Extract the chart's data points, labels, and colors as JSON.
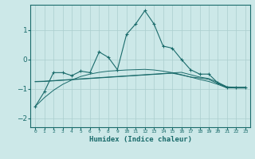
{
  "xlabel": "Humidex (Indice chaleur)",
  "ylabel": "",
  "background_color": "#cce8e8",
  "grid_color": "#aacece",
  "line_color": "#1a6b6b",
  "xlim": [
    -0.5,
    23.5
  ],
  "ylim": [
    -2.3,
    1.85
  ],
  "yticks": [
    -2,
    -1,
    0,
    1
  ],
  "xticks": [
    0,
    1,
    2,
    3,
    4,
    5,
    6,
    7,
    8,
    9,
    10,
    11,
    12,
    13,
    14,
    15,
    16,
    17,
    18,
    19,
    20,
    21,
    22,
    23
  ],
  "series": [
    {
      "x": [
        0,
        1,
        2,
        3,
        4,
        5,
        6,
        7,
        8,
        9,
        10,
        11,
        12,
        13,
        14,
        15,
        16,
        17,
        18,
        19,
        20,
        21,
        22,
        23
      ],
      "y": [
        -1.6,
        -1.1,
        -0.45,
        -0.45,
        -0.55,
        -0.4,
        -0.45,
        0.25,
        0.07,
        -0.35,
        0.85,
        1.2,
        1.65,
        1.2,
        0.45,
        0.38,
        0.0,
        -0.35,
        -0.5,
        -0.5,
        -0.8,
        -0.95,
        -0.95,
        -0.95
      ],
      "marker": "+"
    },
    {
      "x": [
        0,
        1,
        2,
        3,
        4,
        5,
        6,
        7,
        8,
        9,
        10,
        11,
        12,
        13,
        14,
        15,
        16,
        17,
        18,
        19,
        20,
        21,
        22,
        23
      ],
      "y": [
        -0.75,
        -0.74,
        -0.72,
        -0.7,
        -0.68,
        -0.66,
        -0.64,
        -0.62,
        -0.6,
        -0.58,
        -0.56,
        -0.54,
        -0.52,
        -0.5,
        -0.48,
        -0.46,
        -0.44,
        -0.52,
        -0.6,
        -0.65,
        -0.78,
        -0.93,
        -0.95,
        -0.95
      ],
      "marker": null
    },
    {
      "x": [
        0,
        1,
        2,
        3,
        4,
        5,
        6,
        7,
        8,
        9,
        10,
        11,
        12,
        13,
        14,
        15,
        16,
        17,
        18,
        19,
        20,
        21,
        22,
        23
      ],
      "y": [
        -0.76,
        -0.75,
        -0.73,
        -0.71,
        -0.69,
        -0.67,
        -0.65,
        -0.63,
        -0.61,
        -0.59,
        -0.57,
        -0.55,
        -0.53,
        -0.51,
        -0.49,
        -0.47,
        -0.53,
        -0.6,
        -0.63,
        -0.68,
        -0.82,
        -0.96,
        -0.97,
        -0.97
      ],
      "marker": null
    },
    {
      "x": [
        0,
        1,
        2,
        3,
        4,
        5,
        6,
        7,
        8,
        9,
        10,
        11,
        12,
        13,
        14,
        15,
        16,
        17,
        18,
        19,
        20,
        21,
        22,
        23
      ],
      "y": [
        -1.6,
        -1.3,
        -1.05,
        -0.85,
        -0.7,
        -0.58,
        -0.5,
        -0.44,
        -0.4,
        -0.38,
        -0.36,
        -0.35,
        -0.34,
        -0.36,
        -0.4,
        -0.45,
        -0.52,
        -0.6,
        -0.68,
        -0.75,
        -0.85,
        -0.97,
        -0.97,
        -0.97
      ],
      "marker": null
    }
  ]
}
